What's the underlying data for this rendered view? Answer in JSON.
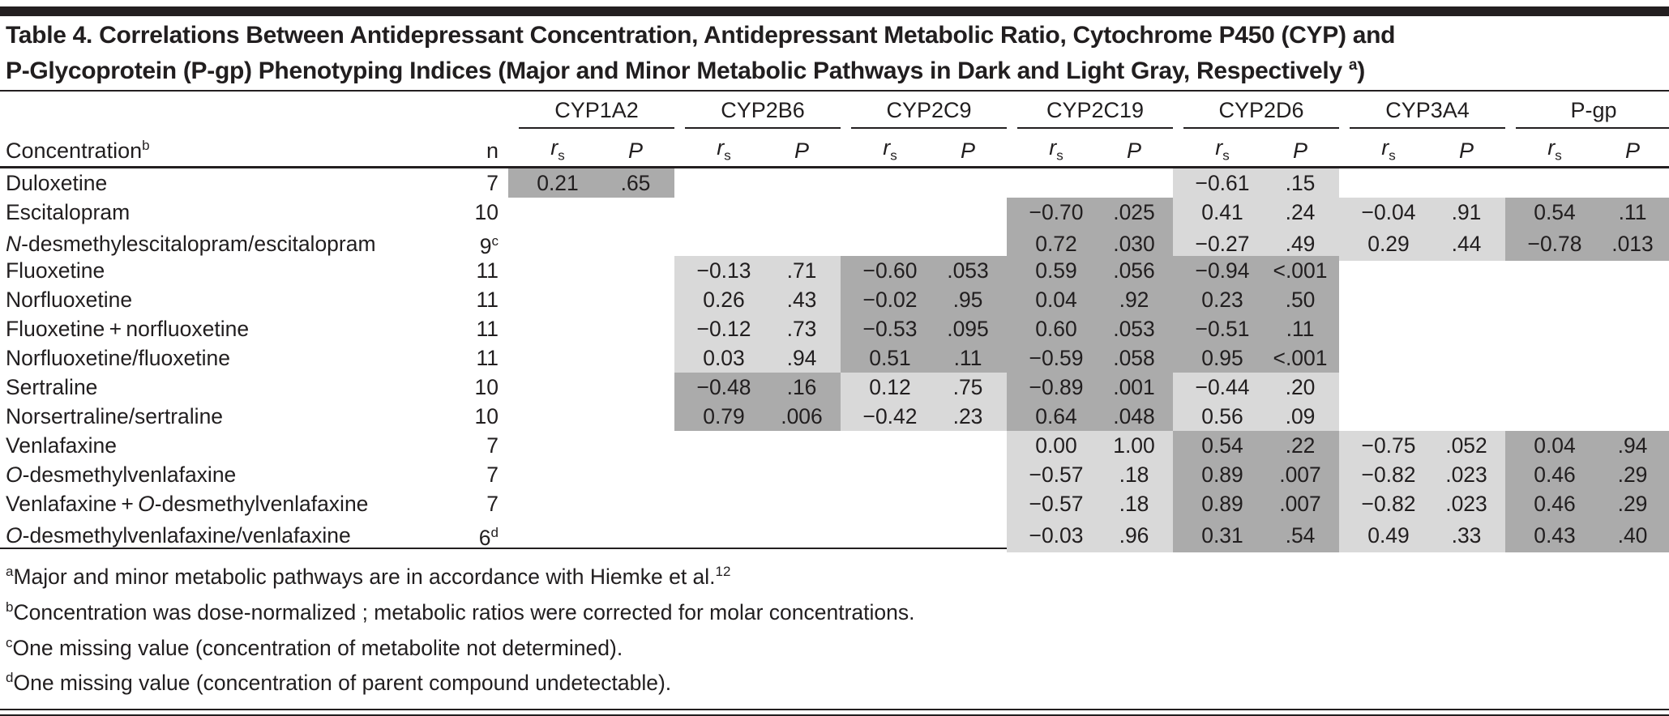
{
  "title": {
    "line1": "Table 4. Correlations Between Antidepressant Concentration, Antidepressant Metabolic Ratio, Cytochrome P450 (CYP) and",
    "line2": "P-Glycoprotein (P-gp) Phenotyping Indices (Major and Minor Metabolic Pathways in Dark and Light Gray, Respectively",
    "sup": "a",
    "close": ")"
  },
  "colors": {
    "dark_shade": "#ABABAB",
    "light_shade": "#D9D9D9",
    "rule": "#231f20"
  },
  "shading_meaning": {
    "dark": "major metabolic pathway",
    "light": "minor metabolic pathway"
  },
  "columns": {
    "concentration_label": "Concentration",
    "concentration_sup": "b",
    "n_label": "n",
    "rs_base": "r",
    "rs_sub": "s",
    "p_label": "P",
    "groups": [
      "CYP1A2",
      "CYP2B6",
      "CYP2C9",
      "CYP2C19",
      "CYP2D6",
      "CYP3A4",
      "P-gp"
    ]
  },
  "rows": [
    {
      "name_parts": [
        {
          "text": "Duloxetine",
          "italic": false
        }
      ],
      "n": "7",
      "n_sup": "",
      "cells": {
        "CYP1A2": {
          "rs": "0.21",
          "p": ".65",
          "shade": "dark"
        },
        "CYP2D6": {
          "rs": "−0.61",
          "p": ".15",
          "shade": "light"
        }
      }
    },
    {
      "name_parts": [
        {
          "text": "Escitalopram",
          "italic": false
        }
      ],
      "n": "10",
      "n_sup": "",
      "cells": {
        "CYP2C19": {
          "rs": "−0.70",
          "p": ".025",
          "shade": "dark"
        },
        "CYP2D6": {
          "rs": "0.41",
          "p": ".24",
          "shade": "light"
        },
        "CYP3A4": {
          "rs": "−0.04",
          "p": ".91",
          "shade": "light"
        },
        "P-gp": {
          "rs": "0.54",
          "p": ".11",
          "shade": "dark"
        }
      }
    },
    {
      "name_parts": [
        {
          "text": "N",
          "italic": true
        },
        {
          "text": "-desmethylescitalopram/escitalopram",
          "italic": false
        }
      ],
      "n": "9",
      "n_sup": "c",
      "cells": {
        "CYP2C19": {
          "rs": "0.72",
          "p": ".030",
          "shade": "dark"
        },
        "CYP2D6": {
          "rs": "−0.27",
          "p": ".49",
          "shade": "light"
        },
        "CYP3A4": {
          "rs": "0.29",
          "p": ".44",
          "shade": "light"
        },
        "P-gp": {
          "rs": "−0.78",
          "p": ".013",
          "shade": "dark"
        }
      }
    },
    {
      "name_parts": [
        {
          "text": "Fluoxetine",
          "italic": false
        }
      ],
      "n": "11",
      "n_sup": "",
      "cells": {
        "CYP2B6": {
          "rs": "−0.13",
          "p": ".71",
          "shade": "light"
        },
        "CYP2C9": {
          "rs": "−0.60",
          "p": ".053",
          "shade": "dark"
        },
        "CYP2C19": {
          "rs": "0.59",
          "p": ".056",
          "shade": "dark"
        },
        "CYP2D6": {
          "rs": "−0.94",
          "p": "<.001",
          "shade": "dark"
        }
      }
    },
    {
      "name_parts": [
        {
          "text": "Norfluoxetine",
          "italic": false
        }
      ],
      "n": "11",
      "n_sup": "",
      "cells": {
        "CYP2B6": {
          "rs": "0.26",
          "p": ".43",
          "shade": "light"
        },
        "CYP2C9": {
          "rs": "−0.02",
          "p": ".95",
          "shade": "dark"
        },
        "CYP2C19": {
          "rs": "0.04",
          "p": ".92",
          "shade": "dark"
        },
        "CYP2D6": {
          "rs": "0.23",
          "p": ".50",
          "shade": "dark"
        }
      }
    },
    {
      "name_parts": [
        {
          "text": "Fluoxetine + norfluoxetine",
          "italic": false
        }
      ],
      "n": "11",
      "n_sup": "",
      "cells": {
        "CYP2B6": {
          "rs": "−0.12",
          "p": ".73",
          "shade": "light"
        },
        "CYP2C9": {
          "rs": "−0.53",
          "p": ".095",
          "shade": "dark"
        },
        "CYP2C19": {
          "rs": "0.60",
          "p": ".053",
          "shade": "dark"
        },
        "CYP2D6": {
          "rs": "−0.51",
          "p": ".11",
          "shade": "dark"
        }
      }
    },
    {
      "name_parts": [
        {
          "text": "Norfluoxetine/fluoxetine",
          "italic": false
        }
      ],
      "n": "11",
      "n_sup": "",
      "cells": {
        "CYP2B6": {
          "rs": "0.03",
          "p": ".94",
          "shade": "light"
        },
        "CYP2C9": {
          "rs": "0.51",
          "p": ".11",
          "shade": "dark"
        },
        "CYP2C19": {
          "rs": "−0.59",
          "p": ".058",
          "shade": "dark"
        },
        "CYP2D6": {
          "rs": "0.95",
          "p": "<.001",
          "shade": "dark"
        }
      }
    },
    {
      "name_parts": [
        {
          "text": "Sertraline",
          "italic": false
        }
      ],
      "n": "10",
      "n_sup": "",
      "cells": {
        "CYP2B6": {
          "rs": "−0.48",
          "p": ".16",
          "shade": "dark"
        },
        "CYP2C9": {
          "rs": "0.12",
          "p": ".75",
          "shade": "light"
        },
        "CYP2C19": {
          "rs": "−0.89",
          "p": ".001",
          "shade": "dark"
        },
        "CYP2D6": {
          "rs": "−0.44",
          "p": ".20",
          "shade": "light"
        }
      }
    },
    {
      "name_parts": [
        {
          "text": "Norsertraline/sertraline",
          "italic": false
        }
      ],
      "n": "10",
      "n_sup": "",
      "cells": {
        "CYP2B6": {
          "rs": "0.79",
          "p": ".006",
          "shade": "dark"
        },
        "CYP2C9": {
          "rs": "−0.42",
          "p": ".23",
          "shade": "light"
        },
        "CYP2C19": {
          "rs": "0.64",
          "p": ".048",
          "shade": "dark"
        },
        "CYP2D6": {
          "rs": "0.56",
          "p": ".09",
          "shade": "light"
        }
      }
    },
    {
      "name_parts": [
        {
          "text": "Venlafaxine",
          "italic": false
        }
      ],
      "n": "7",
      "n_sup": "",
      "cells": {
        "CYP2C19": {
          "rs": "0.00",
          "p": "1.00",
          "shade": "light"
        },
        "CYP2D6": {
          "rs": "0.54",
          "p": ".22",
          "shade": "dark"
        },
        "CYP3A4": {
          "rs": "−0.75",
          "p": ".052",
          "shade": "light"
        },
        "P-gp": {
          "rs": "0.04",
          "p": ".94",
          "shade": "dark"
        }
      }
    },
    {
      "name_parts": [
        {
          "text": "O",
          "italic": true
        },
        {
          "text": "-desmethylvenlafaxine",
          "italic": false
        }
      ],
      "n": "7",
      "n_sup": "",
      "cells": {
        "CYP2C19": {
          "rs": "−0.57",
          "p": ".18",
          "shade": "light"
        },
        "CYP2D6": {
          "rs": "0.89",
          "p": ".007",
          "shade": "dark"
        },
        "CYP3A4": {
          "rs": "−0.82",
          "p": ".023",
          "shade": "light"
        },
        "P-gp": {
          "rs": "0.46",
          "p": ".29",
          "shade": "dark"
        }
      }
    },
    {
      "name_parts": [
        {
          "text": "Venlafaxine + ",
          "italic": false
        },
        {
          "text": "O",
          "italic": true
        },
        {
          "text": "-desmethylvenlafaxine",
          "italic": false
        }
      ],
      "n": "7",
      "n_sup": "",
      "cells": {
        "CYP2C19": {
          "rs": "−0.57",
          "p": ".18",
          "shade": "light"
        },
        "CYP2D6": {
          "rs": "0.89",
          "p": ".007",
          "shade": "dark"
        },
        "CYP3A4": {
          "rs": "−0.82",
          "p": ".023",
          "shade": "light"
        },
        "P-gp": {
          "rs": "0.46",
          "p": ".29",
          "shade": "dark"
        }
      }
    },
    {
      "name_parts": [
        {
          "text": "O",
          "italic": true
        },
        {
          "text": "-desmethylvenlafaxine/venlafaxine",
          "italic": false
        }
      ],
      "n": "6",
      "n_sup": "d",
      "cells": {
        "CYP2C19": {
          "rs": "−0.03",
          "p": ".96",
          "shade": "light"
        },
        "CYP2D6": {
          "rs": "0.31",
          "p": ".54",
          "shade": "dark"
        },
        "CYP3A4": {
          "rs": "0.49",
          "p": ".33",
          "shade": "light"
        },
        "P-gp": {
          "rs": "0.43",
          "p": ".40",
          "shade": "dark"
        }
      }
    }
  ],
  "footnotes": [
    {
      "marker": "a",
      "text": "Major and minor metabolic pathways are in accordance with Hiemke et al.",
      "end_sup": "12"
    },
    {
      "marker": "b",
      "text": "Concentration was dose-normalized ; metabolic ratios were corrected for molar concentrations.",
      "end_sup": ""
    },
    {
      "marker": "c",
      "text": "One missing value (concentration of metabolite not determined).",
      "end_sup": ""
    },
    {
      "marker": "d",
      "text": "One missing value (concentration of parent compound undetectable).",
      "end_sup": ""
    }
  ]
}
